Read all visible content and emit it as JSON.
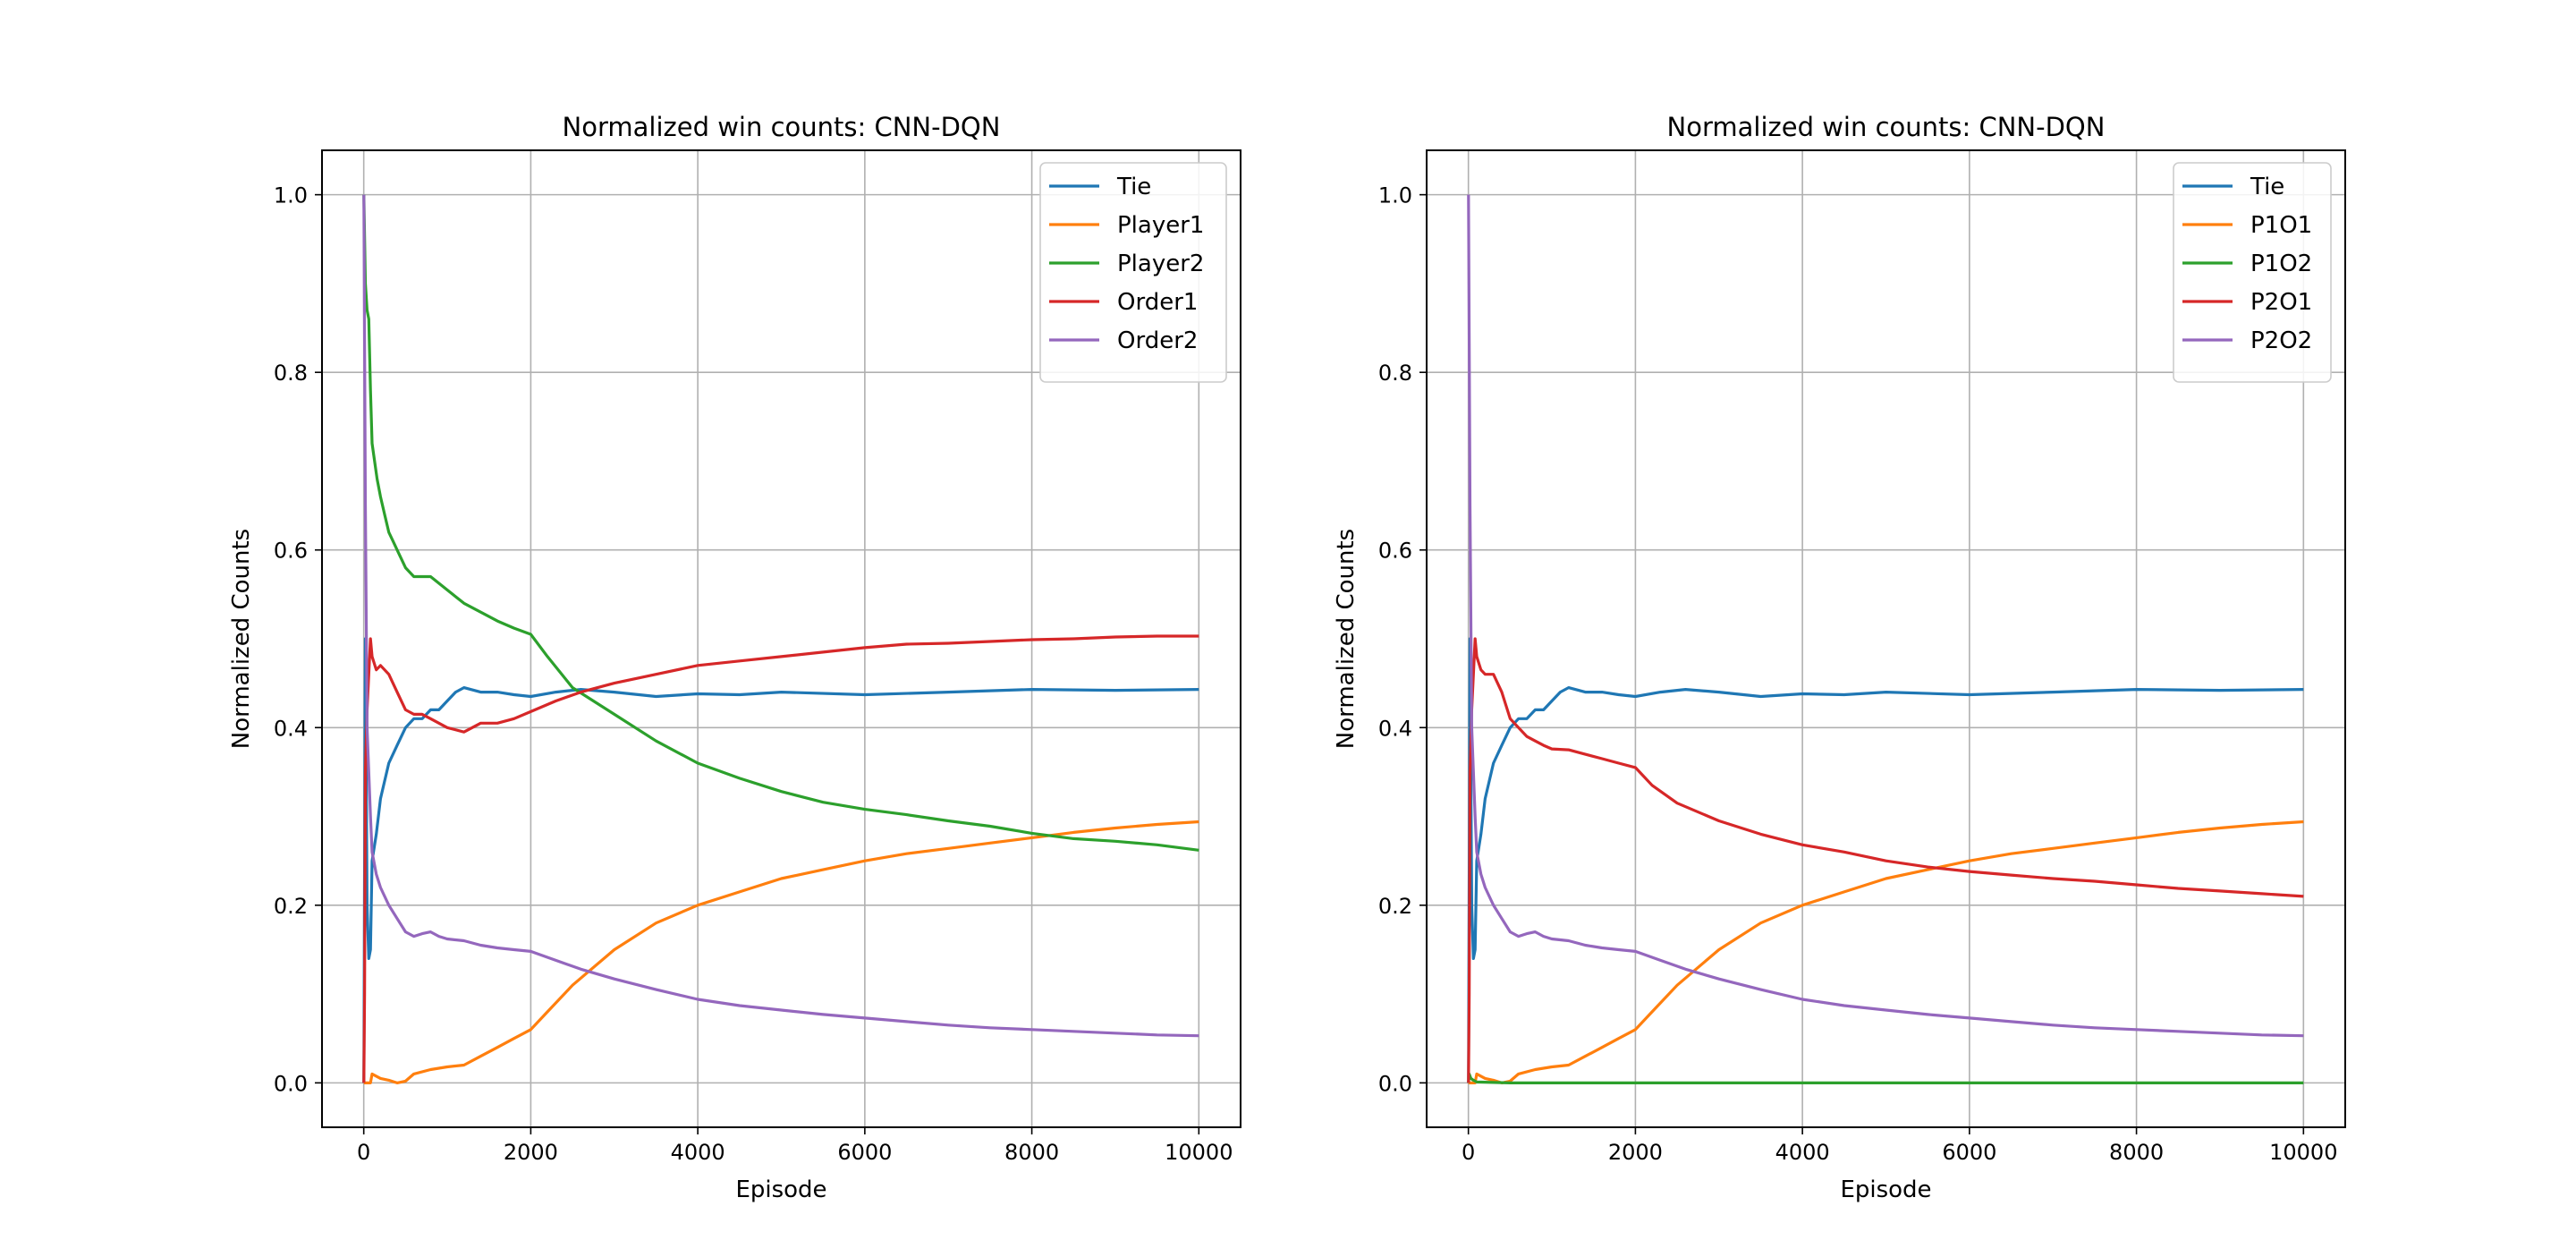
{
  "chart_data": [
    {
      "type": "line",
      "title": "Normalized win counts: CNN-DQN",
      "xlabel": "Episode",
      "ylabel": "Normalized Counts",
      "xlim": [
        -500,
        10500
      ],
      "ylim": [
        -0.05,
        1.05
      ],
      "xticks": [
        0,
        2000,
        4000,
        6000,
        8000,
        10000
      ],
      "xtick_labels": [
        "0",
        "2000",
        "4000",
        "6000",
        "8000",
        "10000"
      ],
      "yticks": [
        0.0,
        0.2,
        0.4,
        0.6,
        0.8,
        1.0
      ],
      "ytick_labels": [
        "0.0",
        "0.2",
        "0.4",
        "0.6",
        "0.8",
        "1.0"
      ],
      "grid": true,
      "legend": "top-right",
      "series": [
        {
          "name": "Tie",
          "color": "#1f77b4",
          "x": [
            1,
            20,
            40,
            60,
            80,
            100,
            150,
            200,
            300,
            400,
            500,
            600,
            700,
            800,
            900,
            1000,
            1100,
            1200,
            1400,
            1600,
            1800,
            2000,
            2300,
            2600,
            3000,
            3500,
            4000,
            4500,
            5000,
            6000,
            7000,
            8000,
            9000,
            10000
          ],
          "y": [
            0.0,
            0.5,
            0.2,
            0.14,
            0.15,
            0.25,
            0.28,
            0.32,
            0.36,
            0.38,
            0.4,
            0.41,
            0.41,
            0.42,
            0.42,
            0.43,
            0.44,
            0.445,
            0.44,
            0.44,
            0.437,
            0.435,
            0.44,
            0.443,
            0.44,
            0.435,
            0.438,
            0.437,
            0.44,
            0.437,
            0.44,
            0.443,
            0.442,
            0.443
          ]
        },
        {
          "name": "Player1",
          "color": "#ff7f0e",
          "x": [
            1,
            50,
            80,
            100,
            200,
            300,
            400,
            500,
            600,
            800,
            1000,
            1200,
            1400,
            1600,
            1800,
            2000,
            2200,
            2500,
            3000,
            3500,
            4000,
            4500,
            5000,
            5500,
            6000,
            6500,
            7000,
            7500,
            8000,
            8500,
            9000,
            9500,
            10000
          ],
          "y": [
            0.0,
            0.0,
            0.0,
            0.01,
            0.005,
            0.003,
            0.0,
            0.002,
            0.01,
            0.015,
            0.018,
            0.02,
            0.03,
            0.04,
            0.05,
            0.06,
            0.08,
            0.11,
            0.15,
            0.18,
            0.2,
            0.215,
            0.23,
            0.24,
            0.25,
            0.258,
            0.264,
            0.27,
            0.276,
            0.282,
            0.287,
            0.291,
            0.294
          ]
        },
        {
          "name": "Player2",
          "color": "#2ca02c",
          "x": [
            1,
            20,
            40,
            60,
            80,
            100,
            130,
            160,
            200,
            250,
            300,
            350,
            400,
            500,
            600,
            700,
            800,
            1000,
            1200,
            1400,
            1600,
            1800,
            2000,
            2200,
            2500,
            3000,
            3500,
            4000,
            4500,
            5000,
            5500,
            6000,
            6500,
            7000,
            7500,
            8000,
            8500,
            9000,
            9500,
            10000
          ],
          "y": [
            1.0,
            0.9,
            0.87,
            0.86,
            0.78,
            0.72,
            0.7,
            0.68,
            0.66,
            0.64,
            0.62,
            0.61,
            0.6,
            0.58,
            0.57,
            0.57,
            0.57,
            0.555,
            0.54,
            0.53,
            0.52,
            0.512,
            0.505,
            0.48,
            0.445,
            0.415,
            0.385,
            0.36,
            0.343,
            0.328,
            0.316,
            0.308,
            0.302,
            0.295,
            0.289,
            0.281,
            0.275,
            0.272,
            0.268,
            0.262
          ]
        },
        {
          "name": "Order1",
          "color": "#d62728",
          "x": [
            1,
            10,
            20,
            40,
            60,
            80,
            100,
            150,
            200,
            300,
            400,
            500,
            600,
            700,
            800,
            1000,
            1200,
            1400,
            1600,
            1800,
            2000,
            2300,
            2600,
            3000,
            3500,
            4000,
            4500,
            5000,
            5500,
            6000,
            6500,
            7000,
            7500,
            8000,
            8500,
            9000,
            9500,
            10000
          ],
          "y": [
            0.0,
            0.1,
            0.35,
            0.42,
            0.46,
            0.5,
            0.48,
            0.465,
            0.47,
            0.46,
            0.44,
            0.42,
            0.415,
            0.415,
            0.41,
            0.4,
            0.395,
            0.405,
            0.405,
            0.41,
            0.418,
            0.43,
            0.44,
            0.45,
            0.46,
            0.47,
            0.475,
            0.48,
            0.485,
            0.49,
            0.494,
            0.495,
            0.497,
            0.499,
            0.5,
            0.502,
            0.503,
            0.503
          ]
        },
        {
          "name": "Order2",
          "color": "#9467bd",
          "x": [
            1,
            20,
            40,
            60,
            80,
            100,
            150,
            200,
            300,
            400,
            500,
            600,
            700,
            800,
            900,
            1000,
            1200,
            1400,
            1600,
            1800,
            2000,
            2300,
            2600,
            3000,
            3500,
            4000,
            4500,
            5000,
            5500,
            6000,
            6500,
            7000,
            7500,
            8000,
            8500,
            9000,
            9500,
            10000
          ],
          "y": [
            1.0,
            0.65,
            0.4,
            0.35,
            0.3,
            0.26,
            0.235,
            0.22,
            0.2,
            0.185,
            0.17,
            0.165,
            0.168,
            0.17,
            0.165,
            0.162,
            0.16,
            0.155,
            0.152,
            0.15,
            0.148,
            0.138,
            0.128,
            0.117,
            0.105,
            0.094,
            0.087,
            0.082,
            0.077,
            0.073,
            0.069,
            0.065,
            0.062,
            0.06,
            0.058,
            0.056,
            0.054,
            0.053
          ]
        }
      ]
    },
    {
      "type": "line",
      "title": "Normalized win counts: CNN-DQN",
      "xlabel": "Episode",
      "ylabel": "Normalized Counts",
      "xlim": [
        -500,
        10500
      ],
      "ylim": [
        -0.05,
        1.05
      ],
      "xticks": [
        0,
        2000,
        4000,
        6000,
        8000,
        10000
      ],
      "xtick_labels": [
        "0",
        "2000",
        "4000",
        "6000",
        "8000",
        "10000"
      ],
      "yticks": [
        0.0,
        0.2,
        0.4,
        0.6,
        0.8,
        1.0
      ],
      "ytick_labels": [
        "0.0",
        "0.2",
        "0.4",
        "0.6",
        "0.8",
        "1.0"
      ],
      "grid": true,
      "legend": "top-right",
      "series": [
        {
          "name": "Tie",
          "color": "#1f77b4",
          "x": [
            1,
            20,
            40,
            60,
            80,
            100,
            150,
            200,
            300,
            400,
            500,
            600,
            700,
            800,
            900,
            1000,
            1100,
            1200,
            1400,
            1600,
            1800,
            2000,
            2300,
            2600,
            3000,
            3500,
            4000,
            4500,
            5000,
            6000,
            7000,
            8000,
            9000,
            10000
          ],
          "y": [
            0.0,
            0.5,
            0.2,
            0.14,
            0.15,
            0.25,
            0.28,
            0.32,
            0.36,
            0.38,
            0.4,
            0.41,
            0.41,
            0.42,
            0.42,
            0.43,
            0.44,
            0.445,
            0.44,
            0.44,
            0.437,
            0.435,
            0.44,
            0.443,
            0.44,
            0.435,
            0.438,
            0.437,
            0.44,
            0.437,
            0.44,
            0.443,
            0.442,
            0.443
          ]
        },
        {
          "name": "P1O1",
          "color": "#ff7f0e",
          "x": [
            1,
            50,
            80,
            100,
            200,
            300,
            400,
            500,
            600,
            800,
            1000,
            1200,
            1400,
            1600,
            1800,
            2000,
            2200,
            2500,
            3000,
            3500,
            4000,
            4500,
            5000,
            5500,
            6000,
            6500,
            7000,
            7500,
            8000,
            8500,
            9000,
            9500,
            10000
          ],
          "y": [
            0.0,
            0.0,
            0.0,
            0.01,
            0.005,
            0.003,
            0.0,
            0.002,
            0.01,
            0.015,
            0.018,
            0.02,
            0.03,
            0.04,
            0.05,
            0.06,
            0.08,
            0.11,
            0.15,
            0.18,
            0.2,
            0.215,
            0.23,
            0.24,
            0.25,
            0.258,
            0.264,
            0.27,
            0.276,
            0.282,
            0.287,
            0.291,
            0.294
          ]
        },
        {
          "name": "P1O2",
          "color": "#2ca02c",
          "x": [
            1,
            10,
            30,
            60,
            100,
            500,
            2000,
            4000,
            6000,
            8000,
            10000
          ],
          "y": [
            0.0,
            0.01,
            0.005,
            0.003,
            0.001,
            0.0,
            0.0,
            0.0,
            0.0,
            0.0,
            0.0
          ]
        },
        {
          "name": "P2O1",
          "color": "#d62728",
          "x": [
            1,
            10,
            20,
            40,
            60,
            80,
            100,
            150,
            200,
            300,
            400,
            500,
            600,
            700,
            800,
            900,
            1000,
            1200,
            1400,
            1600,
            1800,
            2000,
            2200,
            2500,
            3000,
            3500,
            4000,
            4500,
            5000,
            5500,
            6000,
            6500,
            7000,
            7500,
            8000,
            8500,
            9000,
            9500,
            10000
          ],
          "y": [
            0.0,
            0.1,
            0.35,
            0.42,
            0.46,
            0.5,
            0.48,
            0.465,
            0.46,
            0.46,
            0.44,
            0.41,
            0.4,
            0.39,
            0.385,
            0.38,
            0.376,
            0.375,
            0.37,
            0.365,
            0.36,
            0.355,
            0.335,
            0.315,
            0.295,
            0.28,
            0.268,
            0.26,
            0.25,
            0.243,
            0.238,
            0.234,
            0.23,
            0.227,
            0.223,
            0.219,
            0.216,
            0.213,
            0.21
          ]
        },
        {
          "name": "P2O2",
          "color": "#9467bd",
          "x": [
            1,
            20,
            40,
            60,
            80,
            100,
            150,
            200,
            300,
            400,
            500,
            600,
            700,
            800,
            900,
            1000,
            1200,
            1400,
            1600,
            1800,
            2000,
            2300,
            2600,
            3000,
            3500,
            4000,
            4500,
            5000,
            5500,
            6000,
            6500,
            7000,
            7500,
            8000,
            8500,
            9000,
            9500,
            10000
          ],
          "y": [
            1.0,
            0.65,
            0.4,
            0.35,
            0.3,
            0.26,
            0.235,
            0.22,
            0.2,
            0.185,
            0.17,
            0.165,
            0.168,
            0.17,
            0.165,
            0.162,
            0.16,
            0.155,
            0.152,
            0.15,
            0.148,
            0.138,
            0.128,
            0.117,
            0.105,
            0.094,
            0.087,
            0.082,
            0.077,
            0.073,
            0.069,
            0.065,
            0.062,
            0.06,
            0.058,
            0.056,
            0.054,
            0.053
          ]
        }
      ]
    }
  ]
}
